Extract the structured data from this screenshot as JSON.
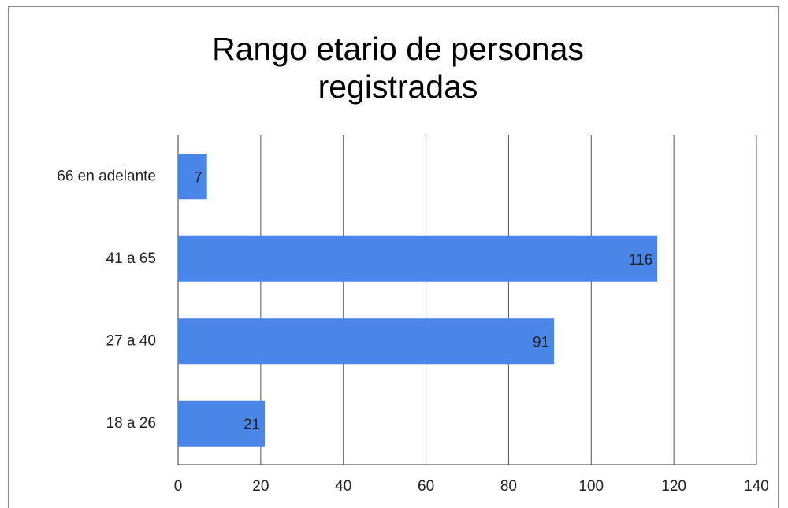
{
  "chart_data": {
    "type": "bar",
    "orientation": "horizontal",
    "title": "Rango etario de personas registradas",
    "categories": [
      "66 en adelante",
      "41 a 65",
      "27 a 40",
      "18 a 26"
    ],
    "values": [
      7,
      116,
      91,
      21
    ],
    "color": "#4a86e8",
    "xlim": [
      0,
      140
    ],
    "xticks": [
      0,
      20,
      40,
      60,
      80,
      100,
      120,
      140
    ],
    "grid": true
  }
}
